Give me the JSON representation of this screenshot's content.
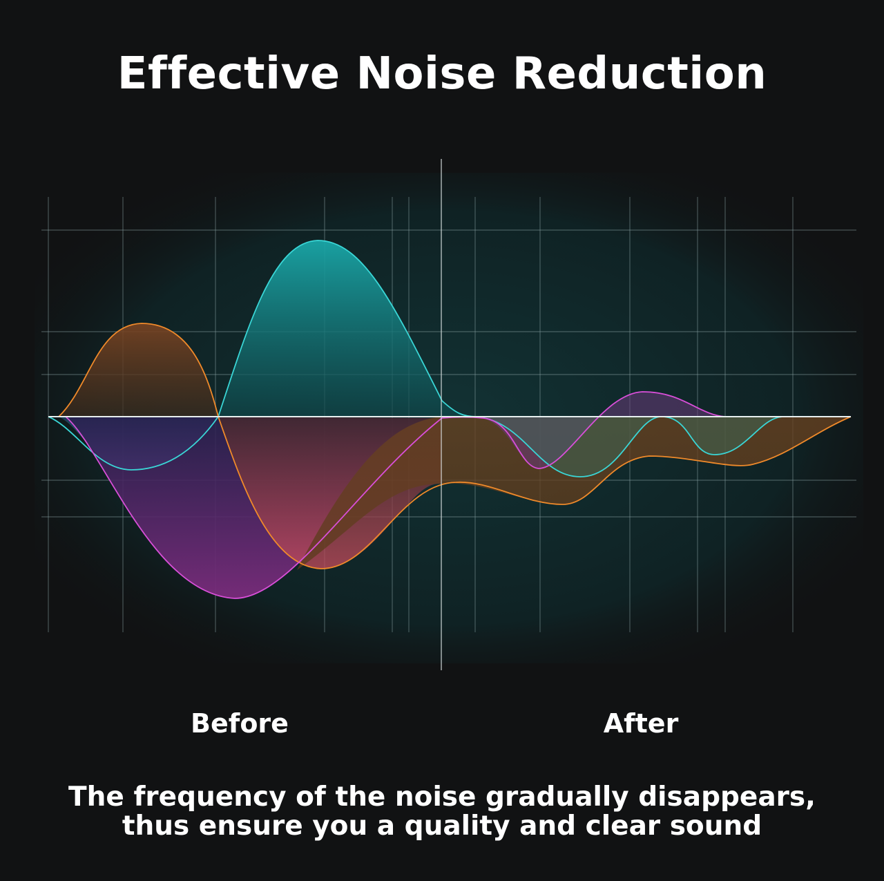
{
  "title": "Effective Noise Reduction",
  "labels": {
    "before": "Before",
    "after": "After"
  },
  "caption": {
    "line1": "The frequency of the noise gradually disappears,",
    "line2": "thus ensure you a quality and clear sound"
  },
  "colors": {
    "background": "#111213",
    "panel": "#10272a",
    "grid": "#8fa6a8",
    "cyan": "#3ad6d6",
    "orange": "#f08a2a",
    "magenta": "#d94fd9"
  }
}
